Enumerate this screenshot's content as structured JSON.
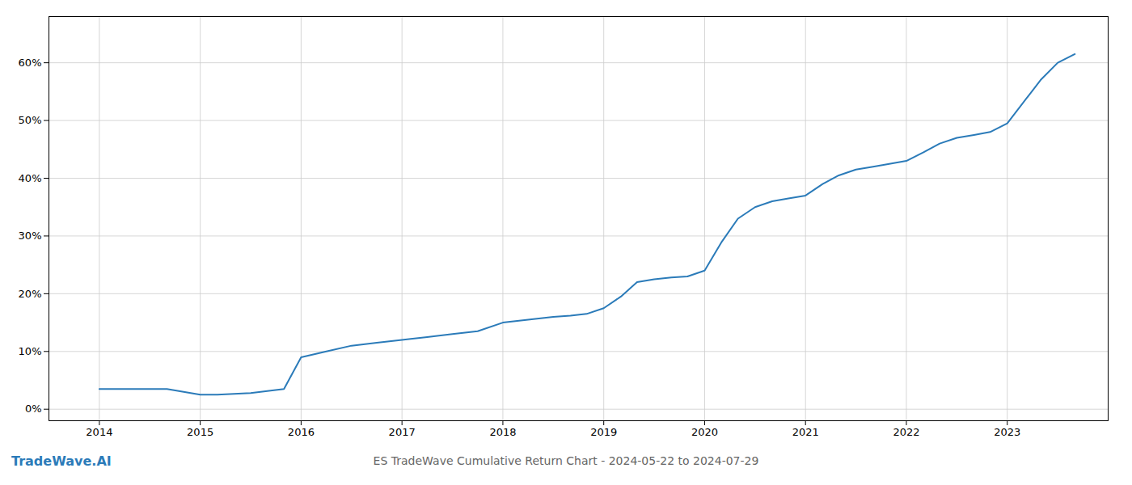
{
  "chart_data": {
    "type": "line",
    "title": "ES TradeWave Cumulative Return Chart - 2024-05-22 to 2024-07-29",
    "annotations": [
      {
        "text": "TradeWave.AI"
      }
    ],
    "x": [
      2014.0,
      2014.33,
      2014.67,
      2015.0,
      2015.17,
      2015.5,
      2015.83,
      2016.0,
      2016.25,
      2016.5,
      2016.75,
      2017.0,
      2017.25,
      2017.5,
      2017.75,
      2018.0,
      2018.25,
      2018.5,
      2018.67,
      2018.83,
      2019.0,
      2019.17,
      2019.33,
      2019.5,
      2019.67,
      2019.83,
      2020.0,
      2020.17,
      2020.33,
      2020.5,
      2020.67,
      2020.83,
      2021.0,
      2021.17,
      2021.33,
      2021.5,
      2021.67,
      2021.83,
      2022.0,
      2022.17,
      2022.33,
      2022.5,
      2022.67,
      2022.83,
      2023.0,
      2023.33,
      2023.5,
      2023.67
    ],
    "values": [
      3.5,
      3.5,
      3.5,
      2.5,
      2.5,
      2.8,
      3.5,
      9.0,
      10.0,
      11.0,
      11.5,
      12.0,
      12.5,
      13.0,
      13.5,
      15.0,
      15.5,
      16.0,
      16.2,
      16.5,
      17.5,
      19.5,
      22.0,
      22.5,
      22.8,
      23.0,
      24.0,
      29.0,
      33.0,
      35.0,
      36.0,
      36.5,
      37.0,
      39.0,
      40.5,
      41.5,
      42.0,
      42.5,
      43.0,
      44.5,
      46.0,
      47.0,
      47.5,
      48.0,
      49.5,
      57.0,
      60.0,
      61.5
    ],
    "color": "#2b7bb9",
    "xlim": [
      2013.5,
      2024.0
    ],
    "ylim": [
      -2,
      68
    ],
    "xticks": [
      2014,
      2015,
      2016,
      2017,
      2018,
      2019,
      2020,
      2021,
      2022,
      2023
    ],
    "yticks": [
      {
        "value": 0,
        "label": "0%"
      },
      {
        "value": 10,
        "label": "10%"
      },
      {
        "value": 20,
        "label": "20%"
      },
      {
        "value": 30,
        "label": "30%"
      },
      {
        "value": 40,
        "label": "40%"
      },
      {
        "value": 50,
        "label": "50%"
      },
      {
        "value": 60,
        "label": "60%"
      }
    ],
    "grid": true
  }
}
